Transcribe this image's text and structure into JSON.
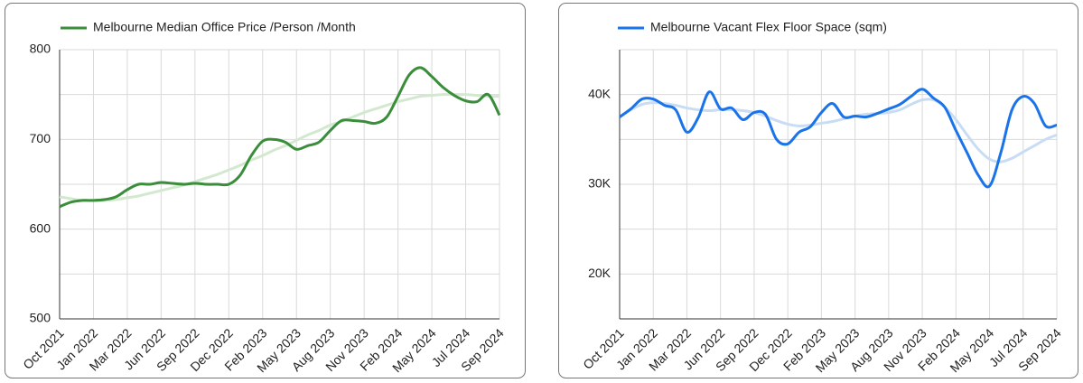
{
  "chart_data": [
    {
      "type": "line",
      "categories": [
        "Oct 2021",
        null,
        null,
        "Jan 2022",
        null,
        null,
        "Mar 2022",
        null,
        null,
        "Jun 2022",
        null,
        null,
        "Sep 2022",
        null,
        null,
        "Dec 2022",
        null,
        null,
        "Feb 2023",
        null,
        null,
        "May 2023",
        null,
        null,
        "Aug 2023",
        null,
        null,
        "Nov 2023",
        null,
        null,
        "Feb 2024",
        null,
        null,
        "May 2024",
        null,
        null,
        "Jul 2024",
        null,
        null,
        "Sep 2024"
      ],
      "series": [
        {
          "name": "Melbourne Median Office Price /Person /Month",
          "color": "#3a8d3a",
          "values": [
            625,
            630,
            632,
            632,
            633,
            636,
            644,
            650,
            650,
            652,
            651,
            650,
            651,
            650,
            650,
            650,
            660,
            682,
            698,
            700,
            697,
            689,
            693,
            697,
            710,
            721,
            721,
            720,
            718,
            725,
            748,
            772,
            780,
            770,
            758,
            749,
            743,
            742,
            750,
            727
          ]
        },
        {
          "color": "#d3e9cf",
          "values": [
            636,
            634,
            632,
            632,
            632,
            633,
            635,
            637,
            640,
            643,
            646,
            649,
            653,
            657,
            661,
            666,
            671,
            677,
            682,
            688,
            693,
            699,
            705,
            710,
            716,
            720,
            725,
            730,
            734,
            738,
            742,
            745,
            748,
            749,
            750,
            750,
            750,
            749,
            748,
            748
          ]
        }
      ],
      "ylim": [
        500,
        800
      ],
      "yticks": [
        500,
        600,
        700,
        800
      ],
      "y_minor_ticks": [
        550,
        650,
        750
      ],
      "grid": true,
      "legend": "top-left"
    },
    {
      "type": "line",
      "categories": [
        "Oct 2021",
        null,
        null,
        "Jan 2022",
        null,
        null,
        "Mar 2022",
        null,
        null,
        "Jun 2022",
        null,
        null,
        "Sep 2022",
        null,
        null,
        "Dec 2022",
        null,
        null,
        "Feb 2023",
        null,
        null,
        "May 2023",
        null,
        null,
        "Aug 2023",
        null,
        null,
        "Nov 2023",
        null,
        null,
        "Feb 2024",
        null,
        null,
        "May 2024",
        null,
        null,
        "Jul 2024",
        null,
        null,
        "Sep 2024"
      ],
      "series": [
        {
          "name": "Melbourne Vacant Flex Floor Space (sqm)",
          "color": "#1a73e8",
          "values": [
            37500,
            38400,
            39500,
            39500,
            38800,
            38300,
            35800,
            37400,
            40300,
            38400,
            38500,
            37200,
            38000,
            37800,
            35000,
            34500,
            35800,
            36400,
            38000,
            39000,
            37500,
            37600,
            37500,
            37900,
            38400,
            38900,
            39800,
            40600,
            39600,
            38600,
            36000,
            33500,
            31000,
            29800,
            33500,
            38300,
            39800,
            39000,
            36500,
            36600
          ]
        },
        {
          "color": "#c8dcf4",
          "values": [
            37500,
            38300,
            38900,
            39100,
            39000,
            38800,
            38500,
            38300,
            38200,
            38300,
            38300,
            38200,
            38000,
            37600,
            37100,
            36700,
            36500,
            36600,
            36800,
            37000,
            37300,
            37600,
            37800,
            37900,
            38000,
            38300,
            38900,
            39400,
            39400,
            38600,
            37200,
            35500,
            33900,
            32800,
            32500,
            32900,
            33600,
            34300,
            35000,
            35500
          ]
        }
      ],
      "ylim": [
        15000,
        45000
      ],
      "yticks": [
        {
          "value": 20000,
          "label": "20K"
        },
        {
          "value": 30000,
          "label": "30K"
        },
        {
          "value": 40000,
          "label": "40K"
        }
      ],
      "y_minor_ticks": [
        25000,
        35000,
        45000
      ],
      "grid": true,
      "legend": "top-left"
    }
  ]
}
